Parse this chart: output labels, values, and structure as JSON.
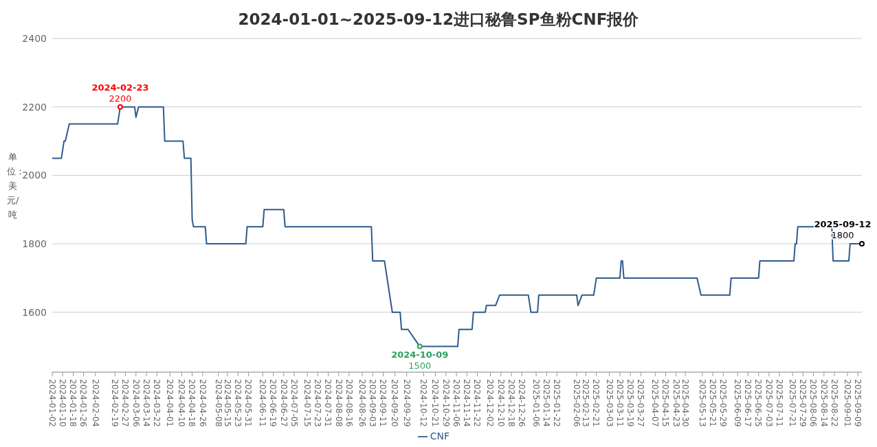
{
  "chart_data": {
    "type": "line",
    "title": "2024-01-01~2025-09-12进口秘鲁SP鱼粉CNF报价",
    "ylabel": "单位：美元/吨",
    "x": [
      "2024-01-02",
      "2024-01-09",
      "2024-01-11",
      "2024-01-12",
      "2024-01-15",
      "2024-02-21",
      "2024-02-23",
      "2024-03-05",
      "2024-03-06",
      "2024-03-08",
      "2024-03-27",
      "2024-03-28",
      "2024-04-11",
      "2024-04-12",
      "2024-04-17",
      "2024-04-18",
      "2024-04-19",
      "2024-04-28",
      "2024-04-29",
      "2024-05-29",
      "2024-05-30",
      "2024-06-11",
      "2024-06-12",
      "2024-06-27",
      "2024-06-28",
      "2024-09-02",
      "2024-09-03",
      "2024-09-12",
      "2024-09-18",
      "2024-09-24",
      "2024-09-25",
      "2024-09-30",
      "2024-10-09",
      "2024-11-07",
      "2024-11-08",
      "2024-11-18",
      "2024-11-19",
      "2024-11-28",
      "2024-11-29",
      "2024-12-06",
      "2024-12-09",
      "2024-12-31",
      "2025-01-02",
      "2025-01-07",
      "2025-01-08",
      "2025-02-06",
      "2025-02-07",
      "2025-02-10",
      "2025-02-19",
      "2025-02-21",
      "2025-03-11",
      "2025-03-12",
      "2025-03-13",
      "2025-03-14",
      "2025-05-09",
      "2025-05-12",
      "2025-06-03",
      "2025-06-04",
      "2025-06-25",
      "2025-06-26",
      "2025-07-22",
      "2025-07-23",
      "2025-07-24",
      "2025-07-25",
      "2025-08-20",
      "2025-08-21",
      "2025-09-02",
      "2025-09-03",
      "2025-09-12"
    ],
    "series": [
      {
        "name": "CNF",
        "color": "#2f5a8c",
        "values": [
          2050,
          2050,
          2100,
          2100,
          2150,
          2150,
          2200,
          2200,
          2170,
          2200,
          2200,
          2100,
          2100,
          2050,
          2050,
          1870,
          1850,
          1850,
          1800,
          1800,
          1850,
          1850,
          1900,
          1900,
          1850,
          1850,
          1750,
          1750,
          1600,
          1600,
          1550,
          1550,
          1500,
          1500,
          1550,
          1550,
          1600,
          1600,
          1620,
          1620,
          1650,
          1650,
          1600,
          1600,
          1650,
          1650,
          1620,
          1650,
          1650,
          1700,
          1700,
          1750,
          1750,
          1700,
          1700,
          1650,
          1650,
          1700,
          1700,
          1750,
          1750,
          1800,
          1800,
          1850,
          1850,
          1750,
          1750,
          1800,
          1800
        ]
      }
    ],
    "xlim": [
      "2024-01-02",
      "2025-09-12"
    ],
    "xticks": [
      "2024-01-02",
      "2024-01-10",
      "2024-01-18",
      "2024-01-26",
      "2024-02-04",
      "2024-02-19",
      "2024-02-27",
      "2024-03-06",
      "2024-03-14",
      "2024-03-22",
      "2024-04-01",
      "2024-04-10",
      "2024-04-18",
      "2024-04-26",
      "2024-05-08",
      "2024-05-15",
      "2024-05-23",
      "2024-05-31",
      "2024-06-11",
      "2024-06-19",
      "2024-06-27",
      "2024-07-05",
      "2024-07-15",
      "2024-07-23",
      "2024-07-31",
      "2024-08-08",
      "2024-08-16",
      "2024-08-26",
      "2024-09-03",
      "2024-09-11",
      "2024-09-20",
      "2024-09-29",
      "2024-10-12",
      "2024-10-21",
      "2024-10-29",
      "2024-11-06",
      "2024-11-14",
      "2024-11-22",
      "2024-12-02",
      "2024-12-10",
      "2024-12-18",
      "2024-12-26",
      "2025-01-06",
      "2025-01-14",
      "2025-01-22",
      "2025-02-06",
      "2025-02-13",
      "2025-02-21",
      "2025-03-03",
      "2025-03-11",
      "2025-03-19",
      "2025-03-27",
      "2025-04-07",
      "2025-04-15",
      "2025-04-23",
      "2025-04-30",
      "2025-05-13",
      "2025-05-21",
      "2025-05-29",
      "2025-06-09",
      "2025-06-17",
      "2025-06-25",
      "2025-07-03",
      "2025-07-11",
      "2025-07-21",
      "2025-07-29",
      "2025-08-06",
      "2025-08-14",
      "2025-08-22",
      "2025-09-01",
      "2025-09-09"
    ],
    "ylim": [
      1425,
      2400
    ],
    "yticks": [
      1600,
      1800,
      2000,
      2200,
      2400
    ],
    "grid": "y",
    "legend": "bottom",
    "marker": "none",
    "line_style": "solid",
    "annotations": [
      {
        "text": "2024-02-23",
        "x": "2024-02-23",
        "y": 2200
      },
      {
        "text": "2200",
        "x": "2024-02-23",
        "y": 2200
      },
      {
        "text": "2024-10-09",
        "x": "2024-10-09",
        "y": 1500
      },
      {
        "text": "1500",
        "x": "2024-10-09",
        "y": 1500
      },
      {
        "text": "2025-09-12",
        "x": "2025-09-12",
        "y": 1800
      },
      {
        "text": "1800",
        "x": "2025-09-12",
        "y": 1800
      }
    ]
  }
}
